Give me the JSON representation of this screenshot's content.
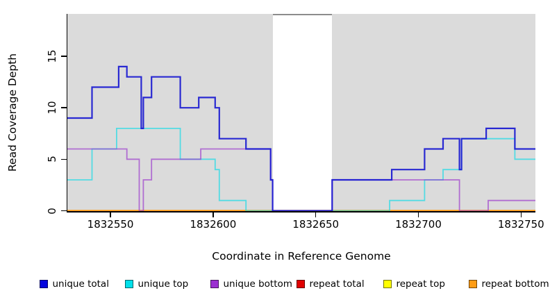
{
  "y_axis": {
    "label": "Read Coverage Depth",
    "ticks": [
      0,
      5,
      10,
      15
    ]
  },
  "x_axis": {
    "label": "Coordinate in Reference Genome",
    "ticks": [
      1832550,
      1832600,
      1832650,
      1832700,
      1832750
    ]
  },
  "legend": [
    {
      "label": "unique total",
      "color": "#0505DD"
    },
    {
      "label": "unique top",
      "color": "#00E0EA"
    },
    {
      "label": "unique bottom",
      "color": "#9B2FD1"
    },
    {
      "label": "repeat total",
      "color": "#E00000"
    },
    {
      "label": "repeat top",
      "color": "#FFFF00"
    },
    {
      "label": "repeat bottom",
      "color": "#FF9C14"
    }
  ],
  "chart_data": {
    "type": "line",
    "subtype": "step-coverage",
    "title": "",
    "xlabel": "Coordinate in Reference Genome",
    "ylabel": "Read Coverage Depth",
    "xlim": [
      1832529,
      1832757
    ],
    "ylim": [
      0,
      19.1
    ],
    "grid": false,
    "panel_bg": "#DBDBDB",
    "no_data_region": [
      1832629,
      1832658
    ],
    "panels": [
      [
        1832529,
        1832629
      ],
      [
        1832658,
        1832757
      ]
    ],
    "legend_position": "bottom",
    "series": [
      {
        "name": "repeat total",
        "color": "#E00000",
        "width": 1.8,
        "opacity": 1,
        "points": [
          [
            1832529,
            0
          ]
        ]
      },
      {
        "name": "repeat top",
        "color": "#FFFF00",
        "width": 1.8,
        "opacity": 1,
        "points": [
          [
            1832529,
            0
          ]
        ]
      },
      {
        "name": "repeat bottom",
        "color": "#FF9C14",
        "width": 2.4,
        "opacity": 1,
        "points": [
          [
            1832529,
            0
          ]
        ]
      },
      {
        "name": "unique top",
        "color": "#00DCE8",
        "width": 1.8,
        "opacity": 0.62,
        "points": [
          [
            1832529,
            3
          ],
          [
            1832541,
            6
          ],
          [
            1832553,
            8
          ],
          [
            1832584,
            5
          ],
          [
            1832601,
            4
          ],
          [
            1832603,
            1
          ],
          [
            1832616,
            0
          ],
          [
            1832686,
            1
          ],
          [
            1832703,
            3
          ],
          [
            1832712,
            4
          ],
          [
            1832721,
            7
          ],
          [
            1832747,
            5
          ]
        ]
      },
      {
        "name": "unique bottom",
        "color": "#9932CC",
        "width": 1.8,
        "opacity": 0.65,
        "points": [
          [
            1832529,
            6
          ],
          [
            1832558,
            5
          ],
          [
            1832564,
            0
          ],
          [
            1832566,
            3
          ],
          [
            1832570,
            5
          ],
          [
            1832594,
            6
          ],
          [
            1832628,
            3
          ],
          [
            1832629,
            0
          ],
          [
            1832658,
            3
          ],
          [
            1832720,
            0
          ],
          [
            1832734,
            1
          ]
        ]
      },
      {
        "name": "unique total",
        "color": "#1A1AD1",
        "width": 2.2,
        "opacity": 0.92,
        "points": [
          [
            1832529,
            9
          ],
          [
            1832541,
            12
          ],
          [
            1832554,
            14
          ],
          [
            1832558,
            13
          ],
          [
            1832565,
            8
          ],
          [
            1832566,
            11
          ],
          [
            1832570,
            13
          ],
          [
            1832584,
            10
          ],
          [
            1832593,
            11
          ],
          [
            1832601,
            10
          ],
          [
            1832603,
            7
          ],
          [
            1832616,
            6
          ],
          [
            1832628,
            3
          ],
          [
            1832629,
            0
          ],
          [
            1832658,
            3
          ],
          [
            1832687,
            4
          ],
          [
            1832703,
            6
          ],
          [
            1832712,
            7
          ],
          [
            1832720,
            4
          ],
          [
            1832721,
            7
          ],
          [
            1832733,
            8
          ],
          [
            1832747,
            6
          ]
        ]
      }
    ]
  }
}
